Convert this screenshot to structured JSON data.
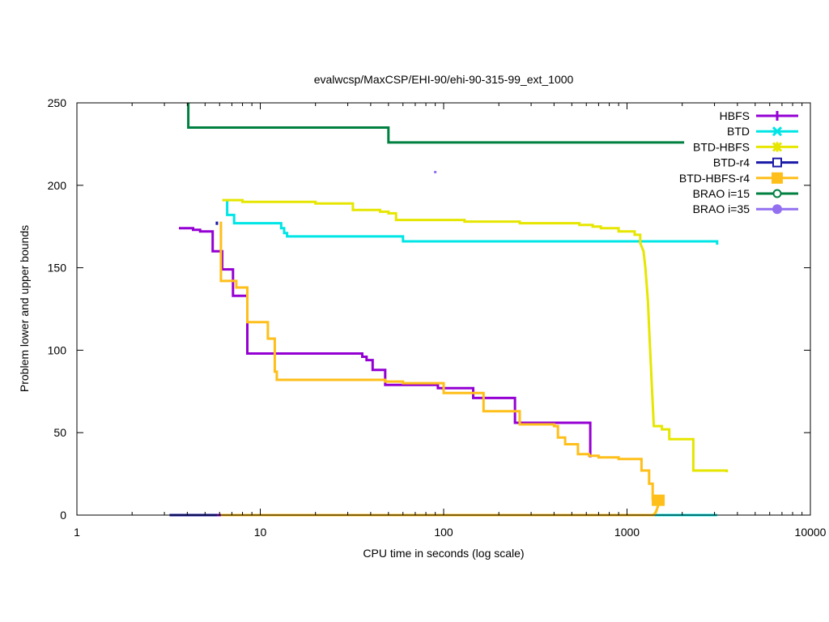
{
  "chart_data": {
    "type": "line",
    "title": "evalwcsp/MaxCSP/EHI-90/ehi-90-315-99_ext_1000",
    "xlabel": "CPU time in seconds (log scale)",
    "ylabel": "Problem lower and upper bounds",
    "xscale": "log",
    "xlim": [
      1,
      10000
    ],
    "ylim": [
      0,
      250
    ],
    "x_ticks": [
      1,
      10,
      100,
      1000,
      10000
    ],
    "x_tick_labels": [
      "1",
      "10",
      "100",
      "1000",
      "10000"
    ],
    "y_ticks": [
      0,
      50,
      100,
      150,
      200,
      250
    ],
    "y_tick_labels": [
      "0",
      "50",
      "100",
      "150",
      "200",
      "250"
    ],
    "legend_position": "top-right",
    "grid": false,
    "series": [
      {
        "name": "HBFS",
        "color": "#9400d3",
        "marker": "plus",
        "upper": [
          [
            3.6,
            174
          ],
          [
            4.3,
            174
          ],
          [
            4.3,
            173
          ],
          [
            4.7,
            173
          ],
          [
            4.7,
            172
          ],
          [
            5.5,
            172
          ],
          [
            5.5,
            160
          ],
          [
            6.2,
            160
          ],
          [
            6.2,
            149
          ],
          [
            7.1,
            149
          ],
          [
            7.1,
            133
          ],
          [
            8.5,
            133
          ],
          [
            8.5,
            98
          ],
          [
            36,
            98
          ],
          [
            36,
            96
          ],
          [
            38,
            96
          ],
          [
            38,
            94
          ],
          [
            41,
            94
          ],
          [
            41,
            88
          ],
          [
            48,
            88
          ],
          [
            48,
            79
          ],
          [
            93,
            79
          ],
          [
            93,
            77
          ],
          [
            145,
            77
          ],
          [
            145,
            71
          ],
          [
            245,
            71
          ],
          [
            245,
            56
          ],
          [
            630,
            56
          ],
          [
            630,
            35
          ]
        ],
        "lower": [
          [
            3.6,
            0
          ],
          [
            630,
            0
          ]
        ]
      },
      {
        "name": "BTD",
        "color": "#00e5e5",
        "marker": "x",
        "upper": [
          [
            6.6,
            191
          ],
          [
            6.6,
            182
          ],
          [
            7.2,
            182
          ],
          [
            7.2,
            177
          ],
          [
            13,
            177
          ],
          [
            13,
            174
          ],
          [
            13.5,
            174
          ],
          [
            13.5,
            171
          ],
          [
            14,
            171
          ],
          [
            14,
            169
          ],
          [
            60,
            169
          ],
          [
            60,
            166
          ],
          [
            3100,
            166
          ],
          [
            3100,
            164
          ]
        ],
        "lower": [
          [
            6.6,
            0
          ],
          [
            3100,
            0
          ]
        ]
      },
      {
        "name": "BTD-HBFS",
        "color": "#e6e600",
        "marker": "star",
        "upper": [
          [
            6.2,
            191
          ],
          [
            8,
            191
          ],
          [
            8,
            190
          ],
          [
            20,
            190
          ],
          [
            20,
            189
          ],
          [
            32,
            189
          ],
          [
            32,
            185
          ],
          [
            45,
            185
          ],
          [
            45,
            184
          ],
          [
            50,
            184
          ],
          [
            50,
            183
          ],
          [
            55,
            183
          ],
          [
            55,
            179
          ],
          [
            130,
            179
          ],
          [
            130,
            178
          ],
          [
            260,
            178
          ],
          [
            260,
            177
          ],
          [
            550,
            177
          ],
          [
            550,
            176
          ],
          [
            650,
            176
          ],
          [
            650,
            175
          ],
          [
            720,
            175
          ],
          [
            720,
            174
          ],
          [
            900,
            174
          ],
          [
            900,
            172
          ],
          [
            1100,
            172
          ],
          [
            1100,
            170
          ],
          [
            1180,
            170
          ],
          [
            1180,
            165
          ],
          [
            1230,
            160
          ],
          [
            1260,
            150
          ],
          [
            1300,
            130
          ],
          [
            1330,
            105
          ],
          [
            1370,
            75
          ],
          [
            1400,
            54
          ],
          [
            1550,
            54
          ],
          [
            1550,
            52
          ],
          [
            1700,
            52
          ],
          [
            1700,
            46
          ],
          [
            2300,
            46
          ],
          [
            2300,
            27
          ],
          [
            3500,
            27
          ],
          [
            3500,
            26
          ]
        ],
        "lower": [
          [
            6.2,
            0
          ],
          [
            1380,
            0
          ],
          [
            1420,
            1
          ],
          [
            1450,
            3
          ],
          [
            1480,
            6
          ],
          [
            1500,
            9
          ]
        ]
      },
      {
        "name": "BTD-r4",
        "color": "#1a1aa8",
        "marker": "square",
        "upper": [
          [
            5.8,
            178
          ],
          [
            5.8,
            176
          ]
        ],
        "lower": [
          [
            3.2,
            0
          ],
          [
            5.8,
            0
          ]
        ]
      },
      {
        "name": "BTD-HBFS-r4",
        "color": "#ffbf1a",
        "marker": "filled-square",
        "upper": [
          [
            6.1,
            178
          ],
          [
            6.1,
            142
          ],
          [
            7.4,
            142
          ],
          [
            7.4,
            138
          ],
          [
            8.5,
            138
          ],
          [
            8.5,
            117
          ],
          [
            11,
            117
          ],
          [
            11,
            107
          ],
          [
            12,
            107
          ],
          [
            12,
            87
          ],
          [
            12.3,
            87
          ],
          [
            12.3,
            82
          ],
          [
            48,
            82
          ],
          [
            48,
            81
          ],
          [
            60,
            81
          ],
          [
            60,
            80
          ],
          [
            100,
            80
          ],
          [
            100,
            74
          ],
          [
            165,
            74
          ],
          [
            165,
            63
          ],
          [
            260,
            63
          ],
          [
            260,
            55
          ],
          [
            400,
            55
          ],
          [
            400,
            54
          ],
          [
            420,
            54
          ],
          [
            420,
            47
          ],
          [
            460,
            47
          ],
          [
            460,
            43
          ],
          [
            540,
            43
          ],
          [
            540,
            37
          ],
          [
            620,
            37
          ],
          [
            620,
            36
          ],
          [
            700,
            36
          ],
          [
            700,
            35
          ],
          [
            900,
            35
          ],
          [
            900,
            34
          ],
          [
            1200,
            34
          ],
          [
            1200,
            27
          ],
          [
            1320,
            27
          ],
          [
            1320,
            19
          ],
          [
            1380,
            19
          ],
          [
            1380,
            9
          ]
        ],
        "lower": [
          [
            6.1,
            0
          ],
          [
            1400,
            0
          ],
          [
            1440,
            2
          ],
          [
            1470,
            5
          ],
          [
            1490,
            8
          ],
          [
            1510,
            9
          ]
        ],
        "end_marker": [
          1480,
          9
        ]
      },
      {
        "name": "BRAO i=15",
        "color": "#008040",
        "marker": "circle",
        "upper": [
          [
            4.05,
            250
          ],
          [
            4.05,
            235
          ],
          [
            50,
            235
          ],
          [
            50,
            226
          ],
          [
            2050,
            226
          ]
        ],
        "lower": []
      },
      {
        "name": "BRAO i=35",
        "color": "#9370f0",
        "marker": "filled-circle",
        "upper": [
          [
            90,
            208
          ]
        ],
        "lower": []
      }
    ]
  }
}
